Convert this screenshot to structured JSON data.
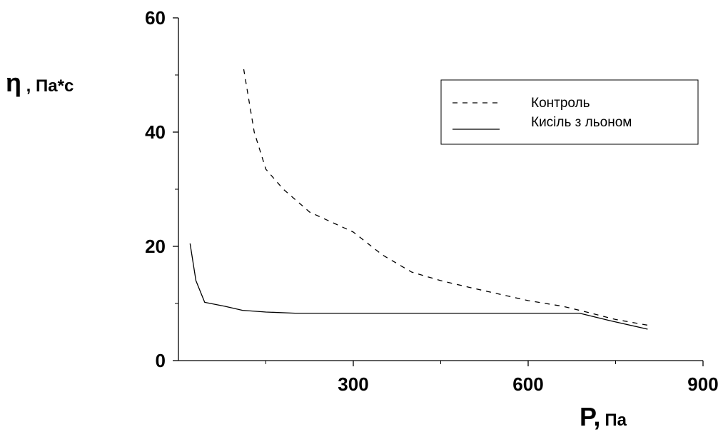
{
  "chart_data": {
    "type": "line",
    "ylabel_symbol": "η",
    "ylabel_unit": " , Па*с",
    "xlabel_symbol": "P,",
    "xlabel_unit": "Па",
    "xlim": [
      0,
      900
    ],
    "ylim": [
      0,
      60
    ],
    "x_ticks": [
      300,
      600,
      900
    ],
    "y_ticks": [
      0,
      20,
      40,
      60
    ],
    "x_tick_labels": [
      "300",
      "600",
      "900"
    ],
    "y_tick_labels": [
      "0",
      "20",
      "40",
      "60"
    ],
    "grid": false,
    "legend": "top-right",
    "series": [
      {
        "name": "Контроль",
        "style": "dashed",
        "color": "#000000",
        "points": [
          [
            112,
            51
          ],
          [
            130,
            40
          ],
          [
            150,
            33.5
          ],
          [
            180,
            30
          ],
          [
            225,
            26
          ],
          [
            300,
            22.5
          ],
          [
            350,
            18.5
          ],
          [
            400,
            15.5
          ],
          [
            450,
            14
          ],
          [
            500,
            12.8
          ],
          [
            600,
            10.5
          ],
          [
            660,
            9.5
          ],
          [
            700,
            8.5
          ],
          [
            750,
            7.2
          ],
          [
            805,
            6.2
          ]
        ]
      },
      {
        "name": "Кисіль з льоном",
        "style": "solid",
        "color": "#000000",
        "points": [
          [
            20,
            20.5
          ],
          [
            30,
            14
          ],
          [
            45,
            10.2
          ],
          [
            80,
            9.5
          ],
          [
            110,
            8.8
          ],
          [
            150,
            8.5
          ],
          [
            200,
            8.3
          ],
          [
            300,
            8.3
          ],
          [
            400,
            8.3
          ],
          [
            500,
            8.3
          ],
          [
            600,
            8.3
          ],
          [
            688,
            8.3
          ],
          [
            740,
            7
          ],
          [
            805,
            5.5
          ]
        ]
      }
    ]
  }
}
